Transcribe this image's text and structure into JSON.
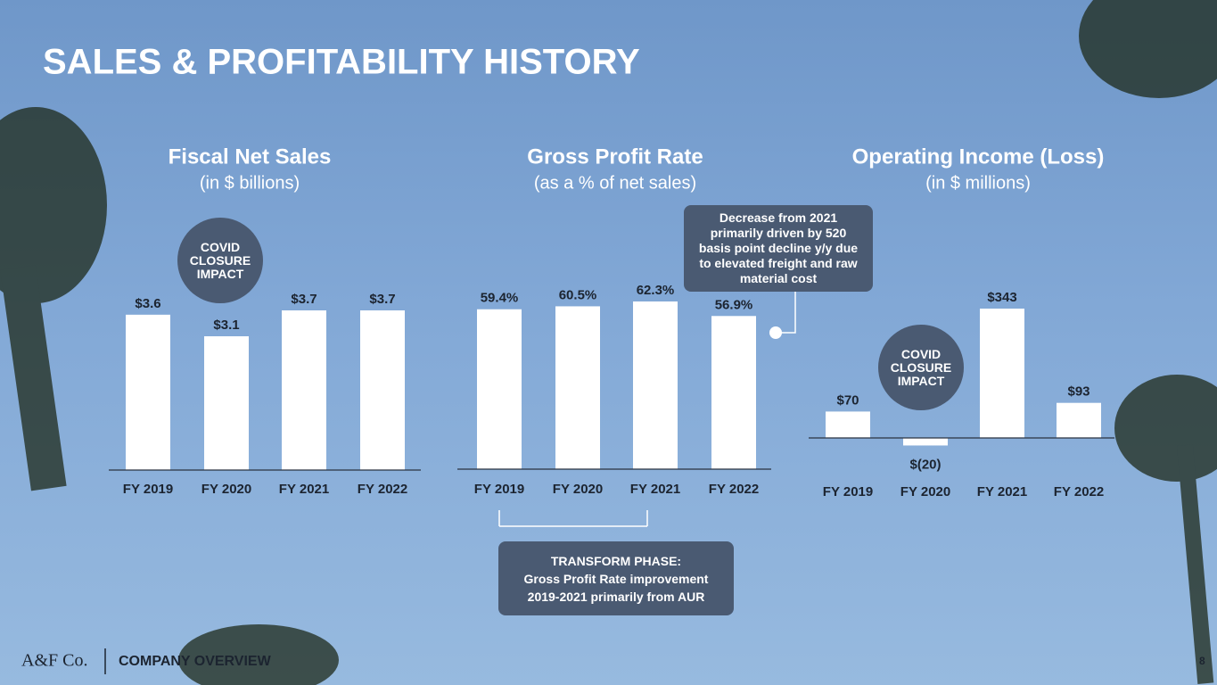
{
  "title": "SALES & PROFITABILITY HISTORY",
  "chart_data": [
    {
      "type": "bar",
      "title": "Fiscal Net Sales",
      "subtitle": "(in $ billions)",
      "categories": [
        "FY 2019",
        "FY 2020",
        "FY 2021",
        "FY 2022"
      ],
      "values": [
        3.6,
        3.1,
        3.7,
        3.7
      ],
      "value_labels": [
        "$3.6",
        "$3.1",
        "$3.7",
        "$3.7"
      ],
      "color": "#ffffff",
      "annotation": "COVID CLOSURE IMPACT"
    },
    {
      "type": "bar",
      "title": "Gross Profit Rate",
      "subtitle": "(as a % of net sales)",
      "categories": [
        "FY 2019",
        "FY 2020",
        "FY 2021",
        "FY 2022"
      ],
      "values": [
        59.4,
        60.5,
        62.3,
        56.9
      ],
      "value_labels": [
        "59.4%",
        "60.5%",
        "62.3%",
        "56.9%"
      ],
      "color": "#ffffff"
    },
    {
      "type": "bar",
      "title": "Operating Income (Loss)",
      "subtitle": "(in $ millions)",
      "categories": [
        "FY 2019",
        "FY 2020",
        "FY 2021",
        "FY 2022"
      ],
      "values": [
        70,
        -20,
        343,
        93
      ],
      "value_labels": [
        "$70",
        "$(20)",
        "$343",
        "$93"
      ],
      "color": "#ffffff",
      "annotation": "COVID CLOSURE IMPACT"
    }
  ],
  "callouts": {
    "decrease": "Decrease from 2021 primarily driven by 520 basis point decline y/y due to elevated freight and raw material cost",
    "transform_heading": "TRANSFORM PHASE:",
    "transform_body": "Gross Profit Rate improvement 2019-2021 primarily from AUR"
  },
  "footer": {
    "brand": "A&F Co.",
    "section": "COMPANY OVERVIEW",
    "page": "8"
  }
}
